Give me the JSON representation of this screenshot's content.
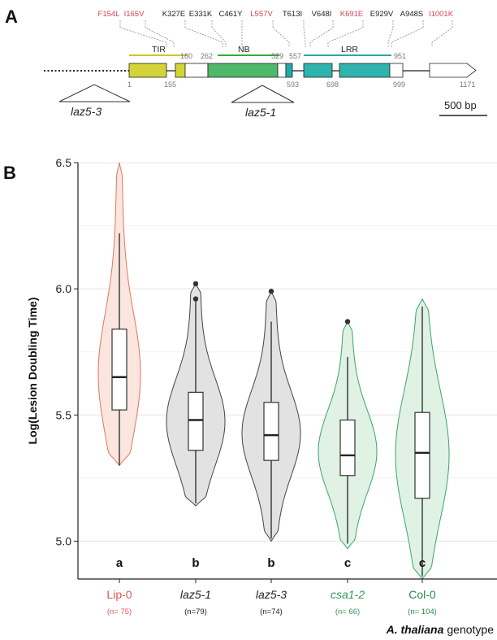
{
  "panel_a": {
    "letter": "A",
    "mutations": [
      {
        "label": "F154L",
        "color": "#d6455a"
      },
      {
        "label": "I165V",
        "color": "#d6455a"
      },
      {
        "label": "K327E",
        "color": "#222222"
      },
      {
        "label": "E331K",
        "color": "#222222"
      },
      {
        "label": "C461Y",
        "color": "#222222"
      },
      {
        "label": "L557V",
        "color": "#d6455a"
      },
      {
        "label": "T613I",
        "color": "#222222"
      },
      {
        "label": "V648I",
        "color": "#222222"
      },
      {
        "label": "K691E",
        "color": "#d6455a"
      },
      {
        "label": "E929V",
        "color": "#222222"
      },
      {
        "label": "A948S",
        "color": "#222222"
      },
      {
        "label": "I1001K",
        "color": "#d6455a"
      }
    ],
    "domains": [
      {
        "name": "TIR",
        "color": "#c8c828"
      },
      {
        "name": "NB",
        "color": "#3aa83a"
      },
      {
        "name": "LRR",
        "color": "#22aaa8"
      }
    ],
    "top_positions": [
      "180",
      "262",
      "529",
      "557",
      "951"
    ],
    "bottom_positions": [
      "1",
      "155",
      "593",
      "698",
      "999",
      "1171"
    ],
    "insertions": [
      "laz5-3",
      "laz5-1"
    ],
    "scale_bar": "500 bp"
  },
  "chart_data": {
    "letter": "B",
    "type": "violin",
    "ylabel": "Log(Lesion Doubling Time)",
    "xlabel_italic": "A. thaliana",
    "xlabel_rest": "genotype",
    "ylim": [
      4.85,
      6.5
    ],
    "yticks": [
      "5.0",
      "5.5",
      "6.0",
      "6.5"
    ],
    "grid": true,
    "categories": [
      {
        "label": "Lip-0",
        "italic": false,
        "n": "(n= 75)",
        "color": "#e8735a",
        "fill": "#fbe6df",
        "label_color": "#e05555",
        "sig": "a",
        "box": {
          "min": 5.3,
          "q1": 5.52,
          "median": 5.65,
          "q3": 5.84,
          "max": 6.22
        },
        "outliers": [],
        "violin_range": [
          5.3,
          6.5
        ]
      },
      {
        "label": "laz5-1",
        "italic": true,
        "n": "(n=79)",
        "color": "#444444",
        "fill": "#e2e2e2",
        "label_color": "#222222",
        "sig": "b",
        "box": {
          "min": 5.15,
          "q1": 5.36,
          "median": 5.48,
          "q3": 5.59,
          "max": 5.95
        },
        "outliers": [
          5.96,
          6.02
        ],
        "violin_range": [
          5.14,
          6.02
        ]
      },
      {
        "label": "laz5-3",
        "italic": true,
        "n": "(n=74)",
        "color": "#444444",
        "fill": "#e2e2e2",
        "label_color": "#222222",
        "sig": "b",
        "box": {
          "min": 5.01,
          "q1": 5.32,
          "median": 5.42,
          "q3": 5.55,
          "max": 5.87
        },
        "outliers": [
          5.99
        ],
        "violin_range": [
          5.0,
          5.99
        ]
      },
      {
        "label": "csa1-2",
        "italic": true,
        "n": "(n= 66)",
        "color": "#3aa56a",
        "fill": "#dff2e4",
        "label_color": "#2e9a55",
        "sig": "c",
        "box": {
          "min": 4.99,
          "q1": 5.26,
          "median": 5.34,
          "q3": 5.48,
          "max": 5.73
        },
        "outliers": [
          5.87
        ],
        "violin_range": [
          4.97,
          5.87
        ]
      },
      {
        "label": "Col-0",
        "italic": false,
        "n": "(n= 104)",
        "color": "#3aa56a",
        "fill": "#dff2e4",
        "label_color": "#2e8a4a",
        "sig": "c",
        "box": {
          "min": 4.86,
          "q1": 5.17,
          "median": 5.35,
          "q3": 5.51,
          "max": 5.93
        },
        "outliers": [],
        "violin_range": [
          4.85,
          5.96
        ]
      }
    ]
  }
}
